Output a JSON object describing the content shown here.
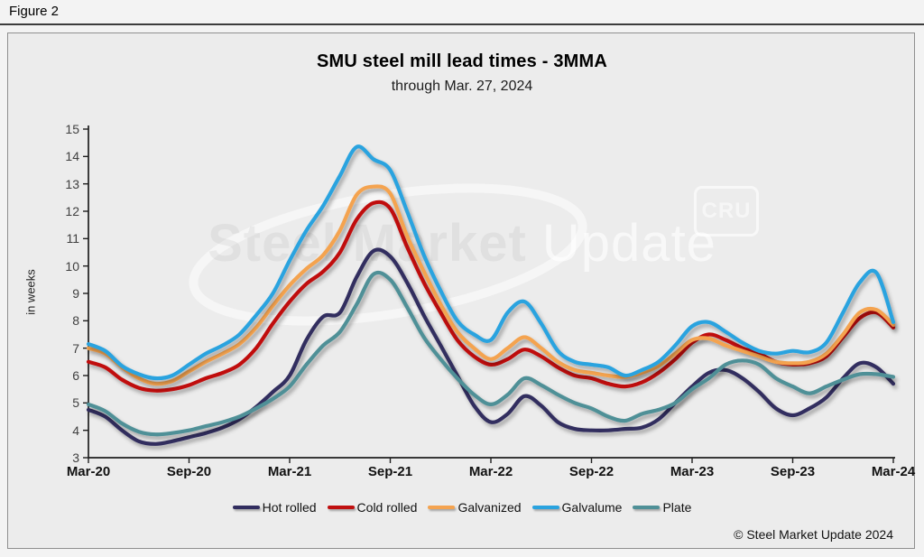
{
  "figure_label": "Figure 2",
  "header": {
    "title": "SMU steel mill lead times - 3MMA",
    "subtitle": "through Mar. 27, 2024"
  },
  "watermark": {
    "primary": "Steel Market",
    "secondary": "Update",
    "badge": "CRU"
  },
  "footer": {
    "copyright": "© Steel Market Update 2024"
  },
  "y_axis": {
    "label": "in weeks",
    "min": 3,
    "max": 15,
    "tick_values": [
      15,
      14,
      13,
      12,
      11,
      10,
      9,
      8,
      7,
      6,
      5,
      4,
      3
    ]
  },
  "x_axis": {
    "tick_labels": [
      "Mar-20",
      "Sep-20",
      "Mar-21",
      "Sep-21",
      "Mar-22",
      "Sep-22",
      "Mar-23",
      "Sep-23",
      "Mar-24"
    ]
  },
  "chart_data": {
    "type": "line",
    "title": "SMU steel mill lead times - 3MMA",
    "subtitle": "through Mar. 27, 2024",
    "ylabel": "in weeks",
    "ylim": [
      3,
      15
    ],
    "grid": false,
    "legend_position": "bottom",
    "x_start": "Mar-2020",
    "x_end": "Mar-2024",
    "x_interval": "monthly",
    "x_tick_labels": [
      "Mar-20",
      "Sep-20",
      "Mar-21",
      "Sep-21",
      "Mar-22",
      "Sep-22",
      "Mar-23",
      "Sep-23",
      "Mar-24"
    ],
    "unit": "weeks",
    "series": [
      {
        "name": "Hot rolled",
        "color": "#312d5f",
        "values": [
          4.75,
          4.5,
          4.0,
          3.6,
          3.5,
          3.6,
          3.75,
          3.9,
          4.1,
          4.4,
          4.85,
          5.4,
          6.0,
          7.3,
          8.15,
          8.3,
          9.6,
          10.55,
          10.35,
          9.4,
          8.2,
          7.1,
          6.0,
          4.9,
          4.3,
          4.6,
          5.25,
          4.9,
          4.3,
          4.05,
          4.0,
          4.0,
          4.05,
          4.1,
          4.4,
          5.0,
          5.6,
          6.1,
          6.2,
          5.9,
          5.4,
          4.8,
          4.55,
          4.8,
          5.2,
          5.9,
          6.45,
          6.3,
          5.7
        ]
      },
      {
        "name": "Cold rolled",
        "color": "#c01010",
        "values": [
          6.5,
          6.3,
          5.85,
          5.55,
          5.45,
          5.5,
          5.65,
          5.9,
          6.1,
          6.4,
          7.0,
          7.9,
          8.7,
          9.35,
          9.8,
          10.5,
          11.7,
          12.3,
          12.1,
          10.7,
          9.4,
          8.3,
          7.3,
          6.7,
          6.4,
          6.6,
          6.95,
          6.7,
          6.3,
          6.0,
          5.9,
          5.7,
          5.6,
          5.75,
          6.1,
          6.6,
          7.2,
          7.5,
          7.3,
          7.0,
          6.8,
          6.5,
          6.4,
          6.45,
          6.7,
          7.4,
          8.1,
          8.3,
          7.75
        ]
      },
      {
        "name": "Galvanized",
        "color": "#f4a350",
        "values": [
          7.0,
          6.8,
          6.3,
          5.9,
          5.7,
          5.8,
          6.15,
          6.5,
          6.8,
          7.15,
          7.75,
          8.55,
          9.3,
          9.9,
          10.4,
          11.3,
          12.6,
          12.9,
          12.65,
          11.1,
          9.8,
          8.6,
          7.6,
          7.0,
          6.6,
          7.0,
          7.4,
          7.0,
          6.5,
          6.2,
          6.1,
          6.0,
          5.95,
          6.1,
          6.35,
          6.8,
          7.3,
          7.35,
          7.1,
          6.9,
          6.7,
          6.5,
          6.45,
          6.5,
          6.8,
          7.5,
          8.3,
          8.4,
          7.85
        ]
      },
      {
        "name": "Galvalume",
        "color": "#2aa3df",
        "values": [
          7.15,
          6.9,
          6.35,
          6.05,
          5.9,
          6.0,
          6.4,
          6.8,
          7.1,
          7.5,
          8.2,
          9.0,
          10.2,
          11.3,
          12.2,
          13.3,
          14.35,
          13.9,
          13.5,
          12.0,
          10.4,
          9.1,
          8.0,
          7.5,
          7.3,
          8.3,
          8.7,
          7.9,
          6.9,
          6.5,
          6.4,
          6.3,
          6.0,
          6.2,
          6.5,
          7.1,
          7.8,
          7.95,
          7.6,
          7.2,
          6.9,
          6.8,
          6.9,
          6.85,
          7.2,
          8.3,
          9.4,
          9.75,
          7.95
        ]
      },
      {
        "name": "Plate",
        "color": "#4f9097",
        "values": [
          4.95,
          4.7,
          4.25,
          3.95,
          3.85,
          3.9,
          4.0,
          4.15,
          4.3,
          4.5,
          4.8,
          5.15,
          5.6,
          6.4,
          7.1,
          7.6,
          8.6,
          9.7,
          9.5,
          8.5,
          7.4,
          6.6,
          5.9,
          5.3,
          4.95,
          5.3,
          5.9,
          5.65,
          5.3,
          5.0,
          4.8,
          4.5,
          4.35,
          4.6,
          4.75,
          5.0,
          5.5,
          5.9,
          6.4,
          6.55,
          6.4,
          5.9,
          5.6,
          5.35,
          5.6,
          5.85,
          6.05,
          6.05,
          5.95
        ]
      }
    ]
  }
}
